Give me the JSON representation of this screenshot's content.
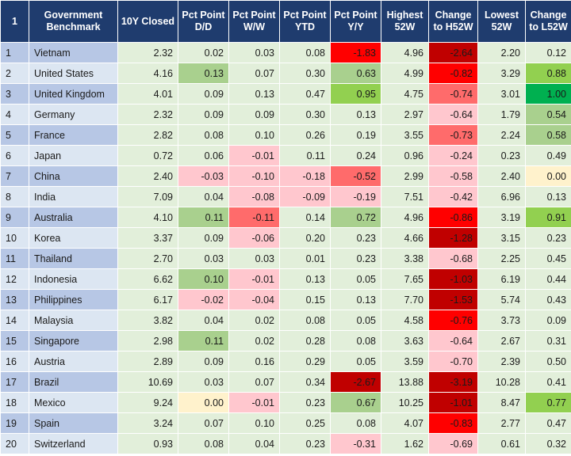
{
  "header": {
    "rank": "1",
    "name": "Government Benchmark",
    "cols": [
      "10Y Closed",
      "Pct Point D/D",
      "Pct Point W/W",
      "Pct Point YTD",
      "Pct Point Y/Y",
      "Highest 52W",
      "Change to H52W",
      "Lowest 52W",
      "Change to L52W"
    ]
  },
  "rows": [
    {
      "rank": "1",
      "name": "Vietnam",
      "vals": [
        "2.32",
        "0.02",
        "0.03",
        "0.08",
        "-1.83",
        "4.96",
        "-2.64",
        "2.20",
        "0.12"
      ]
    },
    {
      "rank": "2",
      "name": "United States",
      "vals": [
        "4.16",
        "0.13",
        "0.07",
        "0.30",
        "0.63",
        "4.99",
        "-0.82",
        "3.29",
        "0.88"
      ]
    },
    {
      "rank": "3",
      "name": "United Kingdom",
      "vals": [
        "4.01",
        "0.09",
        "0.13",
        "0.47",
        "0.95",
        "4.75",
        "-0.74",
        "3.01",
        "1.00"
      ]
    },
    {
      "rank": "4",
      "name": "Germany",
      "vals": [
        "2.32",
        "0.09",
        "0.09",
        "0.30",
        "0.13",
        "2.97",
        "-0.64",
        "1.79",
        "0.54"
      ]
    },
    {
      "rank": "5",
      "name": "France",
      "vals": [
        "2.82",
        "0.08",
        "0.10",
        "0.26",
        "0.19",
        "3.55",
        "-0.73",
        "2.24",
        "0.58"
      ]
    },
    {
      "rank": "6",
      "name": "Japan",
      "vals": [
        "0.72",
        "0.06",
        "-0.01",
        "0.11",
        "0.24",
        "0.96",
        "-0.24",
        "0.23",
        "0.49"
      ]
    },
    {
      "rank": "7",
      "name": "China",
      "vals": [
        "2.40",
        "-0.03",
        "-0.10",
        "-0.18",
        "-0.52",
        "2.99",
        "-0.58",
        "2.40",
        "0.00"
      ]
    },
    {
      "rank": "8",
      "name": "India",
      "vals": [
        "7.09",
        "0.04",
        "-0.08",
        "-0.09",
        "-0.19",
        "7.51",
        "-0.42",
        "6.96",
        "0.13"
      ]
    },
    {
      "rank": "9",
      "name": "Australia",
      "vals": [
        "4.10",
        "0.11",
        "-0.11",
        "0.14",
        "0.72",
        "4.96",
        "-0.86",
        "3.19",
        "0.91"
      ]
    },
    {
      "rank": "10",
      "name": "Korea",
      "vals": [
        "3.37",
        "0.09",
        "-0.06",
        "0.20",
        "0.23",
        "4.66",
        "-1.28",
        "3.15",
        "0.23"
      ]
    },
    {
      "rank": "11",
      "name": "Thailand",
      "vals": [
        "2.70",
        "0.03",
        "0.03",
        "0.01",
        "0.23",
        "3.38",
        "-0.68",
        "2.25",
        "0.45"
      ]
    },
    {
      "rank": "12",
      "name": "Indonesia",
      "vals": [
        "6.62",
        "0.10",
        "-0.01",
        "0.13",
        "0.05",
        "7.65",
        "-1.03",
        "6.19",
        "0.44"
      ]
    },
    {
      "rank": "13",
      "name": "Philippines",
      "vals": [
        "6.17",
        "-0.02",
        "-0.04",
        "0.15",
        "0.13",
        "7.70",
        "-1.53",
        "5.74",
        "0.43"
      ]
    },
    {
      "rank": "14",
      "name": "Malaysia",
      "vals": [
        "3.82",
        "0.04",
        "0.02",
        "0.08",
        "0.05",
        "4.58",
        "-0.76",
        "3.73",
        "0.09"
      ]
    },
    {
      "rank": "15",
      "name": "Singapore",
      "vals": [
        "2.98",
        "0.11",
        "0.02",
        "0.28",
        "0.08",
        "3.63",
        "-0.64",
        "2.67",
        "0.31"
      ]
    },
    {
      "rank": "16",
      "name": "Austria",
      "vals": [
        "2.89",
        "0.09",
        "0.16",
        "0.29",
        "0.05",
        "3.59",
        "-0.70",
        "2.39",
        "0.50"
      ]
    },
    {
      "rank": "17",
      "name": "Brazil",
      "vals": [
        "10.69",
        "0.03",
        "0.07",
        "0.34",
        "-2.67",
        "13.88",
        "-3.19",
        "10.28",
        "0.41"
      ]
    },
    {
      "rank": "18",
      "name": "Mexico",
      "vals": [
        "9.24",
        "0.00",
        "-0.01",
        "0.23",
        "0.67",
        "10.25",
        "-1.01",
        "8.47",
        "0.77"
      ]
    },
    {
      "rank": "19",
      "name": "Spain",
      "vals": [
        "3.24",
        "0.07",
        "0.10",
        "0.25",
        "0.08",
        "4.07",
        "-0.83",
        "2.77",
        "0.47"
      ]
    },
    {
      "rank": "20",
      "name": "Switzerland",
      "vals": [
        "0.93",
        "0.08",
        "0.04",
        "0.23",
        "-0.31",
        "1.62",
        "-0.69",
        "0.61",
        "0.32"
      ]
    }
  ],
  "colors": {
    "header_bg": "#1f3c6e",
    "row_odd": "#b7c7e5",
    "row_even": "#dce6f2",
    "data_bg": "#e2efda",
    "green_light": "#a9d08e",
    "green_mid": "#92d050",
    "green_dark": "#00b050",
    "red_light": "#ffc7ce",
    "red_mid": "#ff6b6b",
    "red_strong": "#ff0000",
    "red_dark": "#c00000",
    "yellow_light": "#fff2cc"
  },
  "cell_colors": [
    [
      "data_bg",
      "data_bg",
      "data_bg",
      "data_bg",
      "red_strong",
      "data_bg",
      "red_dark",
      "data_bg",
      "data_bg"
    ],
    [
      "data_bg",
      "green_light",
      "data_bg",
      "data_bg",
      "green_light",
      "data_bg",
      "red_strong",
      "data_bg",
      "green_mid"
    ],
    [
      "data_bg",
      "data_bg",
      "data_bg",
      "data_bg",
      "green_mid",
      "data_bg",
      "red_mid",
      "data_bg",
      "green_dark"
    ],
    [
      "data_bg",
      "data_bg",
      "data_bg",
      "data_bg",
      "data_bg",
      "data_bg",
      "red_light",
      "data_bg",
      "green_light"
    ],
    [
      "data_bg",
      "data_bg",
      "data_bg",
      "data_bg",
      "data_bg",
      "data_bg",
      "red_mid",
      "data_bg",
      "green_light"
    ],
    [
      "data_bg",
      "data_bg",
      "red_light",
      "data_bg",
      "data_bg",
      "data_bg",
      "red_light",
      "data_bg",
      "data_bg"
    ],
    [
      "data_bg",
      "red_light",
      "red_light",
      "red_light",
      "red_mid",
      "data_bg",
      "red_light",
      "data_bg",
      "yellow_light"
    ],
    [
      "data_bg",
      "data_bg",
      "red_light",
      "red_light",
      "red_light",
      "data_bg",
      "red_light",
      "data_bg",
      "data_bg"
    ],
    [
      "data_bg",
      "green_light",
      "red_mid",
      "data_bg",
      "green_light",
      "data_bg",
      "red_strong",
      "data_bg",
      "green_mid"
    ],
    [
      "data_bg",
      "data_bg",
      "red_light",
      "data_bg",
      "data_bg",
      "data_bg",
      "red_dark",
      "data_bg",
      "data_bg"
    ],
    [
      "data_bg",
      "data_bg",
      "data_bg",
      "data_bg",
      "data_bg",
      "data_bg",
      "red_light",
      "data_bg",
      "data_bg"
    ],
    [
      "data_bg",
      "green_light",
      "red_light",
      "data_bg",
      "data_bg",
      "data_bg",
      "red_dark",
      "data_bg",
      "data_bg"
    ],
    [
      "data_bg",
      "red_light",
      "red_light",
      "data_bg",
      "data_bg",
      "data_bg",
      "red_dark",
      "data_bg",
      "data_bg"
    ],
    [
      "data_bg",
      "data_bg",
      "data_bg",
      "data_bg",
      "data_bg",
      "data_bg",
      "red_strong",
      "data_bg",
      "data_bg"
    ],
    [
      "data_bg",
      "green_light",
      "data_bg",
      "data_bg",
      "data_bg",
      "data_bg",
      "red_light",
      "data_bg",
      "data_bg"
    ],
    [
      "data_bg",
      "data_bg",
      "data_bg",
      "data_bg",
      "data_bg",
      "data_bg",
      "red_light",
      "data_bg",
      "data_bg"
    ],
    [
      "data_bg",
      "data_bg",
      "data_bg",
      "data_bg",
      "red_dark",
      "data_bg",
      "red_dark",
      "data_bg",
      "data_bg"
    ],
    [
      "data_bg",
      "yellow_light",
      "red_light",
      "data_bg",
      "green_light",
      "data_bg",
      "red_dark",
      "data_bg",
      "green_mid"
    ],
    [
      "data_bg",
      "data_bg",
      "data_bg",
      "data_bg",
      "data_bg",
      "data_bg",
      "red_strong",
      "data_bg",
      "data_bg"
    ],
    [
      "data_bg",
      "data_bg",
      "data_bg",
      "data_bg",
      "red_light",
      "data_bg",
      "red_light",
      "data_bg",
      "data_bg"
    ]
  ]
}
